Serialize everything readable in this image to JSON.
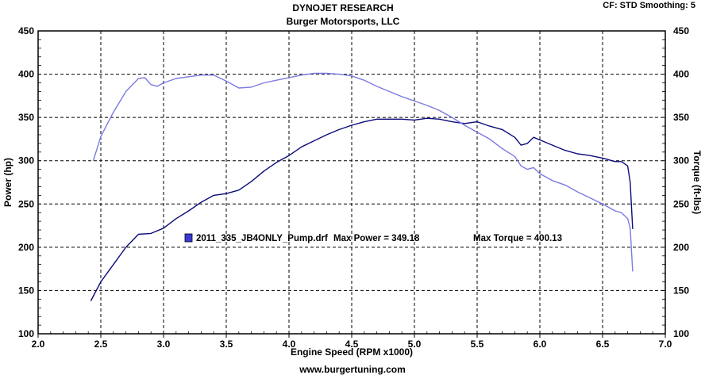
{
  "header": {
    "title": "DYNOJET RESEARCH",
    "subtitle": "Burger Motorsports, LLC",
    "settings": "CF: STD  Smoothing: 5"
  },
  "footer": {
    "website": "www.burgertuning.com"
  },
  "chart_data": {
    "type": "line",
    "title": "DYNOJET RESEARCH",
    "subtitle": "Burger Motorsports, LLC",
    "xlabel": "Engine Speed (RPM x1000)",
    "ylabel_left": "Power (hp)",
    "ylabel_right": "Torque (ft-lbs)",
    "xlim": [
      2.0,
      7.0
    ],
    "ylim": [
      100,
      450
    ],
    "x_ticks": [
      "2.0",
      "2.5",
      "3.0",
      "3.5",
      "4.0",
      "4.5",
      "5.0",
      "5.5",
      "6.0",
      "6.5",
      "7.0"
    ],
    "y_ticks": [
      "100",
      "150",
      "200",
      "250",
      "300",
      "350",
      "400",
      "450"
    ],
    "grid": true,
    "legend": {
      "run": "2011_335_JB4ONLY_Pump.drf",
      "max_power_label": "Max Power = 349.18",
      "max_torque_label": "Max Torque = 400.13",
      "color": "#3a3ad8"
    },
    "series": [
      {
        "name": "Power",
        "color": "#0b0b7a",
        "x": [
          2.42,
          2.5,
          2.6,
          2.7,
          2.8,
          2.9,
          3.0,
          3.1,
          3.2,
          3.3,
          3.4,
          3.5,
          3.6,
          3.7,
          3.8,
          3.9,
          4.0,
          4.1,
          4.2,
          4.3,
          4.4,
          4.5,
          4.6,
          4.7,
          4.8,
          4.9,
          5.0,
          5.1,
          5.2,
          5.3,
          5.4,
          5.5,
          5.6,
          5.7,
          5.8,
          5.85,
          5.9,
          5.95,
          6.0,
          6.1,
          6.2,
          6.3,
          6.4,
          6.5,
          6.6,
          6.65,
          6.7,
          6.72,
          6.74
        ],
        "y": [
          138,
          160,
          180,
          200,
          215,
          216,
          222,
          233,
          242,
          252,
          260,
          262,
          266,
          276,
          288,
          298,
          306,
          316,
          323,
          330,
          336,
          341,
          345,
          348,
          348,
          348,
          347,
          349,
          348,
          345,
          343,
          345,
          340,
          336,
          327,
          318,
          320,
          327,
          324,
          318,
          312,
          308,
          306,
          303,
          299,
          299,
          294,
          275,
          221
        ]
      },
      {
        "name": "Torque",
        "color": "#7b7be0",
        "x": [
          2.44,
          2.5,
          2.6,
          2.7,
          2.8,
          2.85,
          2.9,
          2.95,
          3.0,
          3.1,
          3.2,
          3.3,
          3.4,
          3.5,
          3.6,
          3.7,
          3.8,
          3.9,
          4.0,
          4.1,
          4.2,
          4.3,
          4.4,
          4.5,
          4.6,
          4.7,
          4.8,
          4.9,
          5.0,
          5.1,
          5.2,
          5.3,
          5.4,
          5.5,
          5.6,
          5.7,
          5.8,
          5.85,
          5.9,
          5.95,
          6.0,
          6.1,
          6.2,
          6.3,
          6.4,
          6.5,
          6.6,
          6.65,
          6.7,
          6.72,
          6.74
        ],
        "y": [
          300,
          328,
          356,
          380,
          395,
          396,
          388,
          386,
          390,
          395,
          397,
          399,
          399,
          392,
          384,
          385,
          390,
          393,
          396,
          399,
          401,
          401,
          400,
          398,
          393,
          386,
          380,
          374,
          369,
          364,
          358,
          350,
          341,
          333,
          325,
          314,
          305,
          294,
          290,
          292,
          285,
          277,
          272,
          264,
          257,
          250,
          242,
          240,
          233,
          222,
          172
        ]
      }
    ]
  }
}
